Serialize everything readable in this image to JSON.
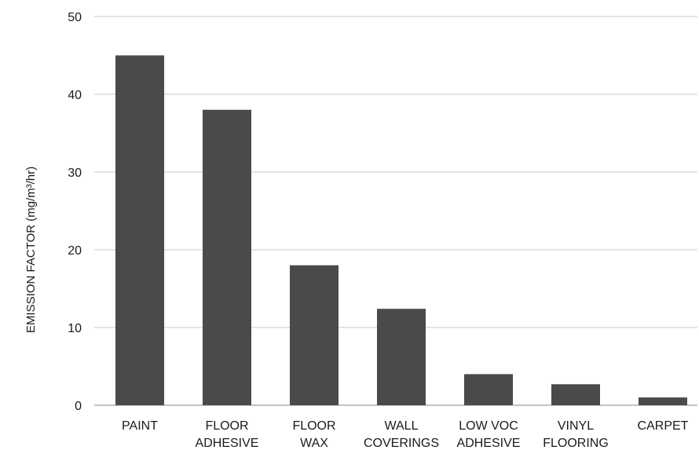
{
  "chart_data": {
    "type": "bar",
    "title": "",
    "xlabel": "",
    "ylabel": "EMISSION FACTOR (mg/m³/hr)",
    "ylim": [
      0,
      50
    ],
    "yticks": [
      0,
      10,
      20,
      30,
      40,
      50
    ],
    "grid": true,
    "legend": "none",
    "categories": [
      [
        "PAINT"
      ],
      [
        "FLOOR",
        "ADHESIVE"
      ],
      [
        "FLOOR",
        "WAX"
      ],
      [
        "WALL",
        "COVERINGS"
      ],
      [
        "LOW VOC",
        "ADHESIVE"
      ],
      [
        "VINYL",
        "FLOORING"
      ],
      [
        "CARPET"
      ]
    ],
    "values": [
      45,
      38,
      18,
      12.4,
      4,
      2.7,
      1
    ],
    "colors": {
      "bar": "#4a4a4a",
      "grid": "#c8c8c8",
      "baseline": "#b0b0b0"
    }
  }
}
